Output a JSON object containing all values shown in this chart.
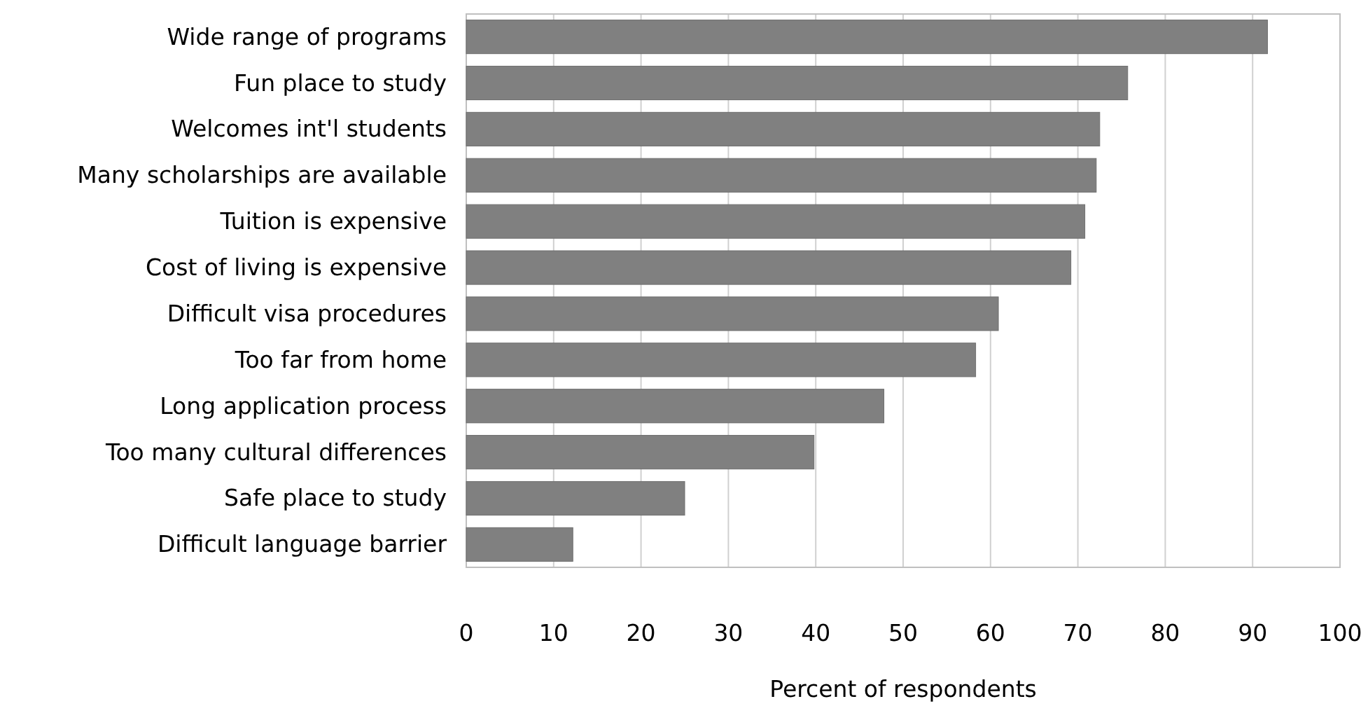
{
  "chart_data": {
    "type": "bar",
    "orientation": "horizontal",
    "xlabel": "Percent of respondents",
    "categories": [
      "Wide range of programs",
      "Fun place to study",
      "Welcomes int'l students",
      "Many scholarships are available",
      "Tuition is expensive",
      "Cost of living is expensive",
      "Difficult visa procedures",
      "Too far from home",
      "Long application process",
      "Too many cultural differences",
      "Safe place to study",
      "Difficult language barrier"
    ],
    "values": [
      91.7,
      75.7,
      72.5,
      72.1,
      70.8,
      69.2,
      60.9,
      58.3,
      47.8,
      39.8,
      25.0,
      12.2
    ],
    "color": "#808080",
    "xlim": [
      0,
      100
    ],
    "xticks": [
      0,
      10,
      20,
      30,
      40,
      50,
      60,
      70,
      80,
      90,
      100
    ],
    "grid": "x"
  }
}
